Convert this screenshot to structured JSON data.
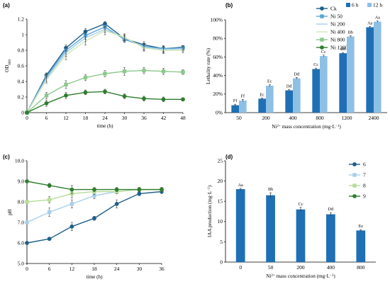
{
  "chart_data": [
    {
      "id": "a",
      "panel_label": "(a)",
      "type": "line",
      "xlabel": "time (h)",
      "ylabel": "OD600",
      "x": [
        0,
        6,
        12,
        18,
        24,
        30,
        36,
        42,
        48
      ],
      "xticks": [
        "0",
        "6",
        "12",
        "18",
        "24",
        "30",
        "36",
        "42",
        "48"
      ],
      "yticks": [
        "0",
        "0.2",
        "0.4",
        "0.6",
        "0.8",
        "1",
        "1.2"
      ],
      "ylim": [
        0,
        1.2
      ],
      "xlim": [
        0,
        48
      ],
      "legend_position": "top-right",
      "series": [
        {
          "name": "Ck",
          "color": "#1f5f8b",
          "marker": "circle",
          "values": [
            0.0,
            0.48,
            0.83,
            1.04,
            1.14,
            0.95,
            0.87,
            0.82,
            0.84
          ],
          "errors": [
            0.01,
            0.03,
            0.04,
            0.04,
            0.03,
            0.04,
            0.04,
            0.03,
            0.02
          ]
        },
        {
          "name": "Ni 50",
          "color": "#5aa6d6",
          "marker": "square",
          "values": [
            0.0,
            0.46,
            0.8,
            0.99,
            1.1,
            0.94,
            0.85,
            0.82,
            0.83
          ],
          "errors": [
            0.01,
            0.03,
            0.05,
            0.05,
            0.04,
            0.04,
            0.04,
            0.04,
            0.03
          ]
        },
        {
          "name": "Ni 200",
          "color": "#a9cfea",
          "marker": "none",
          "values": [
            0.0,
            0.44,
            0.77,
            0.96,
            1.07,
            0.96,
            0.84,
            0.81,
            0.82
          ],
          "errors": [
            0.01,
            0.04,
            0.05,
            0.05,
            0.04,
            0.04,
            0.04,
            0.04,
            0.03
          ]
        },
        {
          "name": "Ni 400",
          "color": "#cfe6b9",
          "marker": "none",
          "values": [
            0.0,
            0.42,
            0.74,
            0.92,
            1.05,
            0.97,
            0.83,
            0.8,
            0.8
          ],
          "errors": [
            0.01,
            0.04,
            0.06,
            0.05,
            0.05,
            0.04,
            0.04,
            0.04,
            0.03
          ]
        },
        {
          "name": "Ni 800",
          "color": "#8cc98b",
          "marker": "square",
          "values": [
            0.0,
            0.22,
            0.36,
            0.45,
            0.5,
            0.53,
            0.54,
            0.53,
            0.52
          ],
          "errors": [
            0.01,
            0.04,
            0.05,
            0.04,
            0.04,
            0.05,
            0.04,
            0.04,
            0.03
          ]
        },
        {
          "name": "Ni 1200",
          "color": "#2e7d2e",
          "marker": "circle",
          "values": [
            0.0,
            0.12,
            0.22,
            0.26,
            0.27,
            0.21,
            0.18,
            0.17,
            0.17
          ],
          "errors": [
            0.01,
            0.04,
            0.04,
            0.03,
            0.03,
            0.03,
            0.03,
            0.03,
            0.02
          ]
        }
      ]
    },
    {
      "id": "b",
      "panel_label": "(b)",
      "type": "bar",
      "xlabel": "Ni2+ mass concentration (mg·L-1)",
      "ylabel": "Lethality rate (%)",
      "categories": [
        "50",
        "200",
        "400",
        "800",
        "1200",
        "2400"
      ],
      "yticks": [
        "0%",
        "20%",
        "40%",
        "60%",
        "80%",
        "100%"
      ],
      "ylim": [
        0,
        100
      ],
      "legend_position": "top-right",
      "series": [
        {
          "name": "6 h",
          "color": "#1f6fb5",
          "values": [
            8,
            15,
            24,
            47,
            64,
            92
          ],
          "errors": [
            1.0,
            0.8,
            0.8,
            1.0,
            0.8,
            0.8
          ],
          "labels": [
            "Ff",
            "Ec",
            "Dd",
            "Cc",
            "Bb",
            "Aa"
          ]
        },
        {
          "name": "12 h",
          "color": "#8ec0e6",
          "values": [
            13,
            29,
            37,
            61,
            82,
            98
          ],
          "errors": [
            1.2,
            1.0,
            0.8,
            1.0,
            0.8,
            0.8
          ],
          "labels": [
            "Ff",
            "Ec",
            "Dd",
            "Cc",
            "Bb",
            "Aa"
          ]
        }
      ]
    },
    {
      "id": "c",
      "panel_label": "(c)",
      "type": "line",
      "xlabel": "time (h)",
      "ylabel": "pH",
      "x": [
        0,
        6,
        12,
        18,
        24,
        30,
        36
      ],
      "xticks": [
        "0",
        "6",
        "12",
        "18",
        "24",
        "30",
        "36"
      ],
      "yticks": [
        "5.0",
        "6.0",
        "7.0",
        "8.0",
        "9.0",
        "10.0"
      ],
      "ylim": [
        5.0,
        10.0
      ],
      "xlim": [
        0,
        36
      ],
      "legend_position": "right",
      "series": [
        {
          "name": "6",
          "color": "#1f5f8b",
          "marker": "circle",
          "values": [
            6.0,
            6.2,
            6.8,
            7.2,
            7.9,
            8.4,
            8.5
          ],
          "errors": [
            0.05,
            0.06,
            0.2,
            0.1,
            0.2,
            0.1,
            0.1
          ]
        },
        {
          "name": "7",
          "color": "#a9cfea",
          "marker": "square",
          "values": [
            7.0,
            7.5,
            7.9,
            8.3,
            8.5,
            8.6,
            8.6
          ],
          "errors": [
            0.05,
            0.2,
            0.2,
            0.15,
            0.1,
            0.1,
            0.1
          ]
        },
        {
          "name": "8",
          "color": "#b7dd98",
          "marker": "square",
          "values": [
            8.0,
            8.1,
            8.4,
            8.5,
            8.5,
            8.6,
            8.6
          ],
          "errors": [
            0.05,
            0.15,
            0.2,
            0.15,
            0.1,
            0.1,
            0.1
          ]
        },
        {
          "name": "9",
          "color": "#2e7d2e",
          "marker": "circle",
          "values": [
            9.0,
            8.8,
            8.6,
            8.6,
            8.6,
            8.6,
            8.6
          ],
          "errors": [
            0.05,
            0.1,
            0.2,
            0.1,
            0.1,
            0.1,
            0.1
          ]
        }
      ]
    },
    {
      "id": "d",
      "panel_label": "(d)",
      "type": "bar",
      "xlabel": "Ni2+ mass concentration (mg·L-1)",
      "ylabel": "IAA production (mg·L-1)",
      "categories": [
        "0",
        "50",
        "200",
        "400",
        "800"
      ],
      "yticks": [
        "0",
        "5",
        "10",
        "15",
        "20",
        "25"
      ],
      "ylim": [
        0,
        25
      ],
      "series": [
        {
          "name": "",
          "color": "#1f6fb5",
          "values": [
            18.0,
            16.5,
            13.0,
            11.8,
            7.8
          ],
          "errors": [
            0.2,
            0.6,
            0.5,
            0.4,
            0.2
          ],
          "labels": [
            "Aa",
            "Bb",
            "Cc",
            "Dd",
            "Ee"
          ]
        }
      ]
    }
  ]
}
